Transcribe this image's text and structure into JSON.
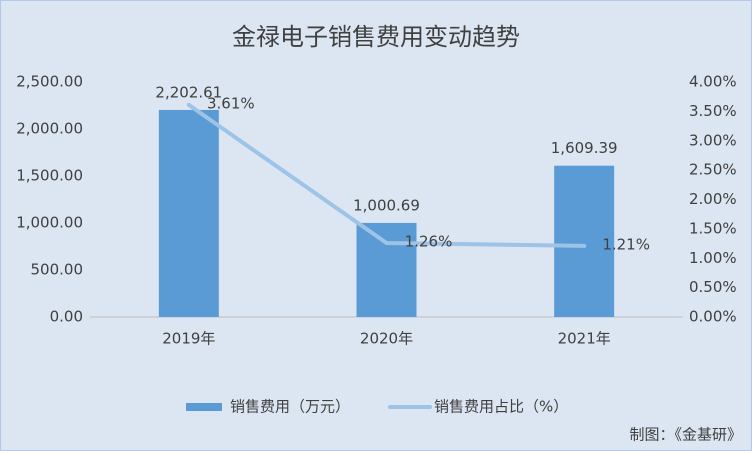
{
  "chart_data": {
    "type": "bar",
    "title": "金禄电子销售费用变动趋势",
    "categories": [
      "2019年",
      "2020年",
      "2021年"
    ],
    "series": [
      {
        "name": "销售费用（万元）",
        "type": "bar",
        "color": "#5b9bd5",
        "values": [
          2202.61,
          1000.69,
          1609.39
        ],
        "value_labels": [
          "2,202.61",
          "1,000.69",
          "1,609.39"
        ]
      },
      {
        "name": "销售费用占比（%）",
        "type": "line",
        "axis": "y2",
        "color": "#9dc3e6",
        "values": [
          3.61,
          1.26,
          1.21
        ],
        "value_labels": [
          "3.61%",
          "1.26%",
          "1.21%"
        ]
      }
    ],
    "ylim": [
      0,
      2500
    ],
    "yticks": [
      {
        "value": 0,
        "label": "0.00"
      },
      {
        "value": 500,
        "label": "500.00"
      },
      {
        "value": 1000,
        "label": "1,000.00"
      },
      {
        "value": 1500,
        "label": "1,500.00"
      },
      {
        "value": 2000,
        "label": "2,000.00"
      },
      {
        "value": 2500,
        "label": "2,500.00"
      }
    ],
    "y2lim": [
      0,
      4
    ],
    "y2ticks": [
      {
        "value": 0,
        "label": "0.00%"
      },
      {
        "value": 0.5,
        "label": "0.50%"
      },
      {
        "value": 1,
        "label": "1.00%"
      },
      {
        "value": 1.5,
        "label": "1.50%"
      },
      {
        "value": 2,
        "label": "2.00%"
      },
      {
        "value": 2.5,
        "label": "2.50%"
      },
      {
        "value": 3,
        "label": "3.00%"
      },
      {
        "value": 3.5,
        "label": "3.50%"
      },
      {
        "value": 4,
        "label": "4.00%"
      }
    ],
    "legend": "bottom",
    "source": "制图：《金基研》"
  }
}
